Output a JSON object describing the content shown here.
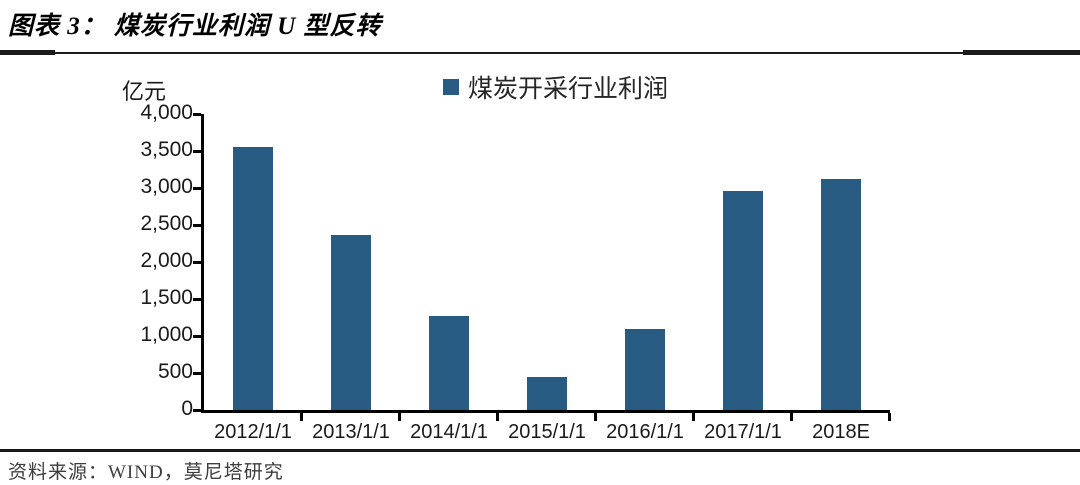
{
  "header": {
    "title": "图表 3：  煤炭行业利润 U 型反转"
  },
  "chart_data": {
    "type": "bar",
    "title": "图表 3：煤炭行业利润 U 型反转",
    "unit_label": "亿元",
    "categories": [
      "2012/1/1",
      "2013/1/1",
      "2014/1/1",
      "2015/1/1",
      "2016/1/1",
      "2017/1/1",
      "2018E"
    ],
    "series": [
      {
        "name": "煤炭开采行业利润",
        "values": [
          3550,
          2370,
          1270,
          440,
          1090,
          2960,
          3120
        ]
      }
    ],
    "xlabel": "",
    "ylabel": "亿元",
    "ylim": [
      0,
      4000
    ],
    "ytick_step": 500,
    "bar_color": "#275b82",
    "axis_color": "#000000",
    "grid": false,
    "legend_position": "top-center"
  },
  "footer": {
    "source": "资料来源：WIND，莫尼塔研究"
  }
}
